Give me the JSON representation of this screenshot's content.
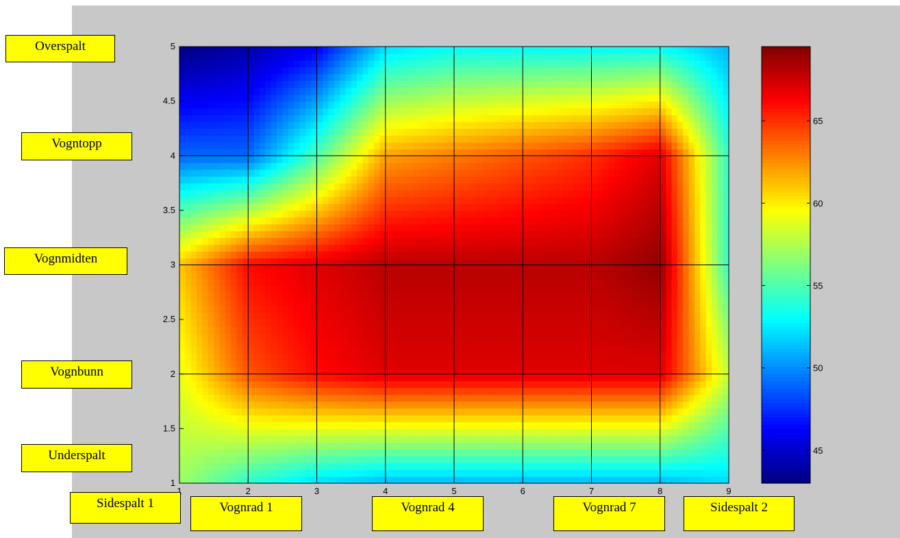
{
  "chart_data": {
    "type": "heatmap",
    "style": "filled-contour",
    "colormap": "jet",
    "x": [
      1,
      2,
      3,
      4,
      5,
      6,
      7,
      8,
      9
    ],
    "y": [
      1,
      2,
      3,
      4,
      5
    ],
    "xlim": [
      1,
      9
    ],
    "ylim": [
      1,
      5
    ],
    "xticks": [
      "1",
      "2",
      "3",
      "4",
      "5",
      "6",
      "7",
      "8",
      "9"
    ],
    "yticks": [
      "1",
      "1.5",
      "2",
      "2.5",
      "3",
      "3.5",
      "4",
      "4.5",
      "5"
    ],
    "grid": true,
    "z": [
      [
        57,
        54,
        52,
        51,
        51,
        51,
        51,
        51,
        52
      ],
      [
        59,
        64,
        66,
        67,
        67,
        67,
        67,
        67,
        58
      ],
      [
        61,
        66,
        67,
        68,
        68,
        68,
        68,
        69,
        54
      ],
      [
        49,
        49,
        55,
        62,
        63,
        64,
        65,
        67,
        54
      ],
      [
        43,
        44,
        46,
        52,
        53,
        53,
        53,
        53,
        51
      ]
    ],
    "colorbar": {
      "range": [
        43,
        69.5
      ],
      "ticks": [
        "45",
        "50",
        "55",
        "60",
        "65"
      ],
      "tick_values": [
        45,
        50,
        55,
        60,
        65
      ]
    }
  },
  "labels": {
    "overspalt": "Overspalt",
    "vogntopp": "Vogntopp",
    "vognmidten": "Vognmidten",
    "vognbunn": "Vognbunn",
    "underspalt": "Underspalt",
    "sidespalt1": "Sidespalt 1",
    "vognrad1": "Vognrad 1",
    "vognrad4": "Vognrad 4",
    "vognrad7": "Vognrad 7",
    "sidespalt2": "Sidespalt 2"
  }
}
